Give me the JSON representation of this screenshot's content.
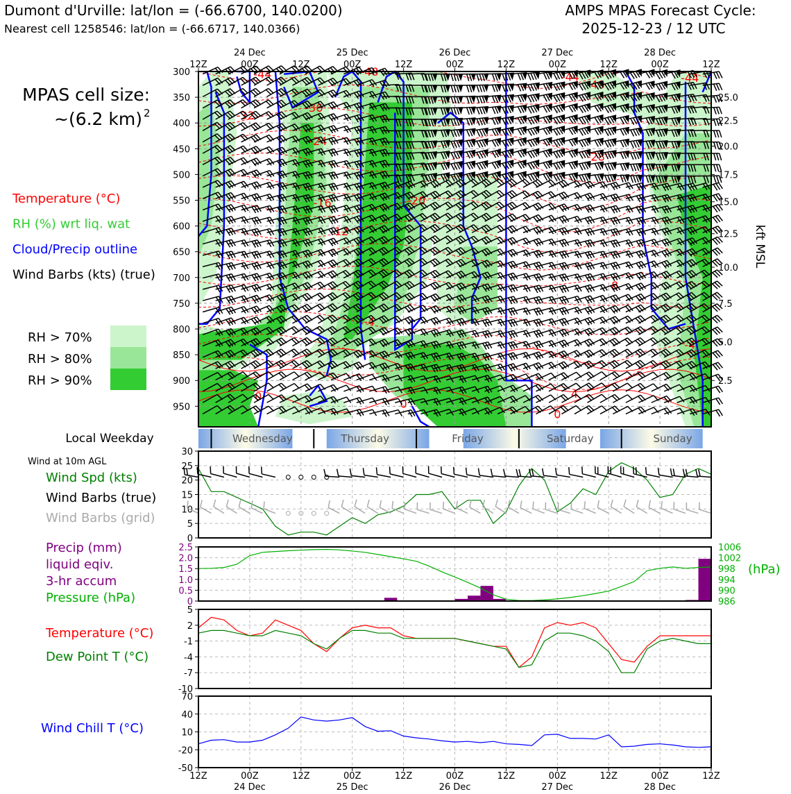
{
  "header": {
    "station": "Dumont d'Urville: lat/lon = (-66.6700, 140.0200)",
    "nearest": "Nearest cell 1258546: lat/lon = (-66.6717, 140.0366)",
    "model": "AMPS MPAS Forecast Cycle:",
    "cycle": "2025-12-23 / 12 UTC"
  },
  "info": {
    "cell_title": "MPAS cell size:",
    "cell_size": "~(6.2 km)",
    "cell_exp": "2"
  },
  "colors": {
    "temperature": "#ff0000",
    "rh": "#33cc33",
    "rh70": "#ccf5cc",
    "rh80": "#99e699",
    "rh90": "#33cc33",
    "cloud": "#0000ff",
    "wind": "#000000",
    "wind_grid": "#aaaaaa",
    "speed": "#008000",
    "precip": "#800080",
    "pressure": "#00b000",
    "dewpoint": "#008000",
    "windchill": "#0000ff"
  },
  "legend_upper": [
    {
      "label": "Temperature (°C)",
      "color": "#ff0000"
    },
    {
      "label": "RH (%) wrt liq. wat",
      "color": "#33cc33"
    },
    {
      "label": "Cloud/Precip outline",
      "color": "#0000ff"
    },
    {
      "label": "Wind Barbs (kts) (true)",
      "color": "#000000"
    }
  ],
  "rh_legend": [
    {
      "label": "RH > 70%",
      "color": "#ccf5cc"
    },
    {
      "label": "RH > 80%",
      "color": "#99e699"
    },
    {
      "label": "RH > 90%",
      "color": "#33cc33"
    }
  ],
  "weekday": {
    "title": "Local Weekday",
    "days": [
      "Wednesday",
      "Thursday",
      "Friday",
      "Saturday",
      "Sunday"
    ]
  },
  "wind_panel": {
    "title": "Wind at 10m AGL",
    "labels": [
      {
        "text": "Wind Spd (kts)",
        "color": "#008000"
      },
      {
        "text": "Wind Barbs (true)",
        "color": "#000000"
      },
      {
        "text": "Wind Barbs (grid)",
        "color": "#aaaaaa"
      }
    ]
  },
  "precip_panel": {
    "labels": [
      {
        "text": "Precip (mm)",
        "color": "#800080"
      },
      {
        "text": "liquid eqiv.",
        "color": "#800080"
      },
      {
        "text": "3-hr accum",
        "color": "#800080"
      },
      {
        "text": "Pressure (hPa)",
        "color": "#00b000"
      }
    ],
    "right_unit": "(hPa)"
  },
  "temp_panel": {
    "labels": [
      {
        "text": "Temperature (°C)",
        "color": "#ff0000"
      },
      {
        "text": "Dew Point T (°C)",
        "color": "#008000"
      }
    ]
  },
  "chill_panel": {
    "labels": [
      {
        "text": "Wind Chill T (°C)",
        "color": "#0000ff"
      }
    ]
  },
  "chart_data": [
    {
      "type": "heatmap",
      "title": "",
      "ylabel": "",
      "y2label": "kft MSL",
      "x_top_ticks": [
        {
          "x": 0,
          "line1": "",
          "line2": "12Z"
        },
        {
          "x": 12,
          "line1": "24 Dec",
          "line2": "00Z"
        },
        {
          "x": 24,
          "line1": "",
          "line2": "12Z"
        },
        {
          "x": 36,
          "line1": "25 Dec",
          "line2": "00Z"
        },
        {
          "x": 48,
          "line1": "",
          "line2": "12Z"
        },
        {
          "x": 60,
          "line1": "26 Dec",
          "line2": "00Z"
        },
        {
          "x": 72,
          "line1": "",
          "line2": "12Z"
        },
        {
          "x": 84,
          "line1": "27 Dec",
          "line2": "00Z"
        },
        {
          "x": 96,
          "line1": "",
          "line2": "12Z"
        },
        {
          "x": 108,
          "line1": "28 Dec",
          "line2": "00Z"
        },
        {
          "x": 120,
          "line1": "",
          "line2": "12Z"
        }
      ],
      "x_range_hours": [
        0,
        120
      ],
      "pressure_ticks": [
        "300",
        "350",
        "400",
        "450",
        "500",
        "550",
        "600",
        "650",
        "700",
        "750",
        "800",
        "850",
        "900",
        "950"
      ],
      "pressure_range_hpa": [
        300,
        990
      ],
      "kft_ticks": [
        {
          "p": 350,
          "label": "25.0"
        },
        {
          "p": 395,
          "label": "22.5"
        },
        {
          "p": 445,
          "label": "20.0"
        },
        {
          "p": 500,
          "label": "17.5"
        },
        {
          "p": 553,
          "label": "15.0"
        },
        {
          "p": 615,
          "label": "12.5"
        },
        {
          "p": 680,
          "label": "10.0"
        },
        {
          "p": 750,
          "label": "7.5"
        },
        {
          "p": 825,
          "label": "5.0"
        },
        {
          "p": 900,
          "label": "2.5"
        }
      ],
      "temperature_labels": [
        {
          "x": 15,
          "p": 305,
          "text": "-44"
        },
        {
          "x": 40,
          "p": 300,
          "text": "-48"
        },
        {
          "x": 27,
          "p": 370,
          "text": "-36"
        },
        {
          "x": 11,
          "p": 385,
          "text": "-32"
        },
        {
          "x": 28,
          "p": 435,
          "text": "-24"
        },
        {
          "x": 29,
          "p": 555,
          "text": "-16"
        },
        {
          "x": 33,
          "p": 610,
          "text": "-12"
        },
        {
          "x": 51,
          "p": 550,
          "text": "-20"
        },
        {
          "x": 87,
          "p": 310,
          "text": "-44"
        },
        {
          "x": 93,
          "p": 325,
          "text": "-40"
        },
        {
          "x": 115,
          "p": 312,
          "text": "-44"
        },
        {
          "x": 93,
          "p": 465,
          "text": "-28"
        },
        {
          "x": 40,
          "p": 785,
          "text": "-4"
        },
        {
          "x": 97,
          "p": 715,
          "text": "-8"
        },
        {
          "x": 115,
          "p": 830,
          "text": "-4"
        },
        {
          "x": 14,
          "p": 930,
          "text": "0"
        },
        {
          "x": 48,
          "p": 945,
          "text": "0"
        },
        {
          "x": 88,
          "p": 925,
          "text": "4"
        },
        {
          "x": 84,
          "p": 965,
          "text": "0"
        }
      ]
    },
    {
      "type": "line",
      "title": "",
      "ylabel": "",
      "ylim": [
        0,
        30
      ],
      "yticks": [
        0,
        5,
        10,
        15,
        20,
        25,
        30
      ],
      "x_hours": [
        0,
        3,
        6,
        9,
        12,
        15,
        18,
        21,
        24,
        27,
        30,
        33,
        36,
        39,
        42,
        45,
        48,
        51,
        54,
        57,
        60,
        63,
        66,
        69,
        72,
        75,
        78,
        81,
        84,
        87,
        90,
        93,
        96,
        99,
        102,
        105,
        108,
        111,
        114,
        117,
        120
      ],
      "series": [
        {
          "name": "Wind Spd (kts)",
          "values": [
            24,
            16,
            16,
            14,
            12,
            10,
            4,
            1,
            2,
            2,
            1,
            4,
            7,
            5,
            8,
            9,
            11,
            15,
            15,
            16,
            10,
            13,
            13,
            5,
            9,
            18,
            24,
            20,
            9,
            12,
            17,
            15,
            23,
            26,
            24,
            20,
            14,
            15,
            22,
            24,
            22
          ]
        }
      ]
    },
    {
      "type": "bar",
      "title": "",
      "ylim": [
        0,
        2.5
      ],
      "yticks": [
        "0",
        "0.5",
        "1.0",
        "1.5",
        "2.0",
        "2.5"
      ],
      "y2ticks": [
        "986",
        "990",
        "994",
        "998",
        "1002",
        "1006"
      ],
      "y2lim": [
        986,
        1006
      ],
      "x_hours": [
        0,
        3,
        6,
        9,
        12,
        15,
        18,
        21,
        24,
        27,
        30,
        33,
        36,
        39,
        42,
        45,
        48,
        51,
        54,
        57,
        60,
        63,
        66,
        69,
        72,
        75,
        78,
        81,
        84,
        87,
        90,
        93,
        96,
        99,
        102,
        105,
        108,
        111,
        114,
        117,
        120
      ],
      "series": [
        {
          "name": "Precip (mm)",
          "bars": [
            {
              "x": 45,
              "value": 0.15
            },
            {
              "x": 61.5,
              "value": 0.1
            },
            {
              "x": 64.5,
              "value": 0.25
            },
            {
              "x": 67.5,
              "value": 0.7
            },
            {
              "x": 70.5,
              "value": 0.1
            },
            {
              "x": 115.5,
              "value": 0.05
            },
            {
              "x": 118.5,
              "value": 1.95
            }
          ]
        },
        {
          "name": "Pressure (hPa)",
          "values": [
            998.0,
            998.1,
            998.4,
            999.6,
            1002.8,
            1004.0,
            1004.3,
            1004.6,
            1004.8,
            1005.0,
            1005.1,
            1004.9,
            1004.5,
            1004.0,
            1003.2,
            1002.4,
            1001.6,
            1000.7,
            998.9,
            996.8,
            994.9,
            992.9,
            990.8,
            988.3,
            986.7,
            986.2,
            986.2,
            986.4,
            986.8,
            987.3,
            988.0,
            988.8,
            989.7,
            991.4,
            993.2,
            997.2,
            998.1,
            998.6,
            998.1,
            998.4,
            998.6
          ]
        }
      ]
    },
    {
      "type": "line",
      "title": "",
      "ylim": [
        -10,
        5
      ],
      "yticks": [
        -10,
        -7,
        -4,
        -1,
        2,
        5
      ],
      "x_hours": [
        0,
        3,
        6,
        9,
        12,
        15,
        18,
        21,
        24,
        27,
        30,
        33,
        36,
        39,
        42,
        45,
        48,
        51,
        54,
        57,
        60,
        63,
        66,
        69,
        72,
        75,
        78,
        81,
        84,
        87,
        90,
        93,
        96,
        99,
        102,
        105,
        108,
        111,
        114,
        117,
        120
      ],
      "series": [
        {
          "name": "Temperature (°C)",
          "values": [
            1.5,
            3.5,
            3.0,
            1.0,
            0.0,
            0.5,
            3.0,
            2.0,
            1.0,
            -1.5,
            -3.0,
            -0.5,
            1.5,
            2.0,
            1.5,
            1.5,
            0.0,
            -0.5,
            -0.5,
            -0.5,
            -0.5,
            -1.0,
            -1.5,
            -2.0,
            -2.0,
            -6.0,
            -4.0,
            1.5,
            2.5,
            2.0,
            2.5,
            1.5,
            -1.5,
            -4.5,
            -5.0,
            -2.0,
            0.0,
            0.0,
            0.0,
            0.0,
            0.0
          ]
        },
        {
          "name": "Dew Point T (°C)",
          "values": [
            0.5,
            1.0,
            1.0,
            0.5,
            0.0,
            0.0,
            1.0,
            0.5,
            0.0,
            -1.5,
            -2.5,
            -0.5,
            1.0,
            1.0,
            0.5,
            0.5,
            -0.5,
            -0.5,
            -0.5,
            -0.5,
            -0.5,
            -1.0,
            -1.5,
            -2.0,
            -2.5,
            -6.0,
            -5.5,
            -1.0,
            0.5,
            0.5,
            0.0,
            -1.0,
            -3.0,
            -7.0,
            -7.0,
            -2.5,
            -1.0,
            -0.5,
            -1.0,
            -1.5,
            -1.5
          ]
        }
      ]
    },
    {
      "type": "line",
      "title": "",
      "ylim": [
        -50,
        70
      ],
      "yticks": [
        -50,
        -20,
        10,
        40,
        70
      ],
      "x_hours": [
        0,
        3,
        6,
        9,
        12,
        15,
        18,
        21,
        24,
        27,
        30,
        33,
        36,
        39,
        42,
        45,
        48,
        51,
        54,
        57,
        60,
        63,
        66,
        69,
        72,
        75,
        78,
        81,
        84,
        87,
        90,
        93,
        96,
        99,
        102,
        105,
        108,
        111,
        114,
        117,
        120
      ],
      "series": [
        {
          "name": "Wind Chill T (°C)",
          "values": [
            -10,
            -4,
            -3,
            -7,
            -7,
            -4,
            5,
            16,
            35,
            30,
            28,
            30,
            34,
            19,
            11,
            12,
            3,
            0,
            -2,
            -5,
            -7,
            -6,
            -8,
            -6,
            -10,
            -11,
            -13,
            5,
            6,
            -1,
            -1,
            -2,
            5,
            -15,
            -14,
            -11,
            -10,
            -12,
            -15,
            -16,
            -15
          ]
        }
      ]
    }
  ],
  "bottom_axis": [
    {
      "x": 0,
      "line1": "12Z",
      "line2": ""
    },
    {
      "x": 12,
      "line1": "00Z",
      "line2": "24 Dec"
    },
    {
      "x": 24,
      "line1": "12Z",
      "line2": ""
    },
    {
      "x": 36,
      "line1": "00Z",
      "line2": "25 Dec"
    },
    {
      "x": 48,
      "line1": "12Z",
      "line2": ""
    },
    {
      "x": 60,
      "line1": "00Z",
      "line2": "26 Dec"
    },
    {
      "x": 72,
      "line1": "12Z",
      "line2": ""
    },
    {
      "x": 84,
      "line1": "00Z",
      "line2": "27 Dec"
    },
    {
      "x": 96,
      "line1": "12Z",
      "line2": ""
    },
    {
      "x": 108,
      "line1": "00Z",
      "line2": "28 Dec"
    },
    {
      "x": 120,
      "line1": "12Z",
      "line2": ""
    }
  ]
}
